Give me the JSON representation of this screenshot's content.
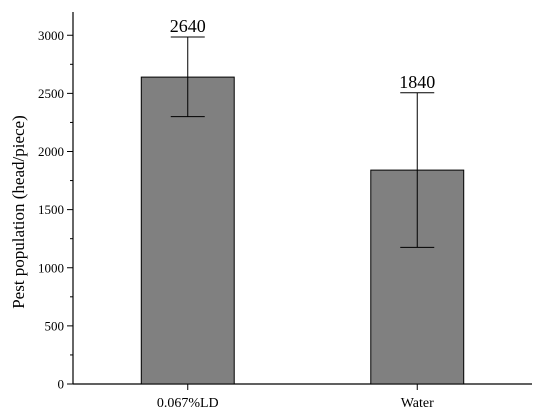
{
  "chart_data": {
    "type": "bar",
    "title": "",
    "xlabel": "",
    "ylabel": "Pest population (head/piece)",
    "ylim": [
      0,
      3200
    ],
    "yticks": [
      0,
      500,
      1000,
      1500,
      2000,
      2500,
      3000
    ],
    "categories": [
      "0.067%LD",
      "Water"
    ],
    "values": [
      2640,
      1840
    ],
    "error_low": [
      2300,
      1175
    ],
    "error_high": [
      2985,
      2505
    ],
    "data_labels": [
      "2640",
      "1840"
    ],
    "bar_color": "#808080",
    "grid": false,
    "legend": "none"
  }
}
